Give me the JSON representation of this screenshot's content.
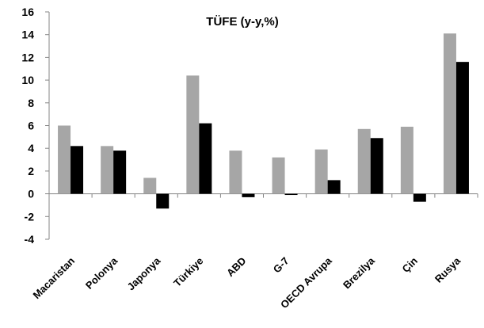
{
  "chart_data": {
    "type": "bar",
    "title": "TÜFE (y-y,%)",
    "xlabel": "",
    "ylabel": "",
    "ylim": [
      -4,
      16
    ],
    "yticks": [
      "16",
      "14",
      "12",
      "10",
      "8",
      "6",
      "4",
      "2",
      "0",
      "-2",
      "-4"
    ],
    "categories": [
      "Macaristan",
      "Polonya",
      "Japonya",
      "Türkiye",
      "ABD",
      "G-7",
      "OECD Avrupa",
      "Brezilya",
      "Çin",
      "Rusya"
    ],
    "series": [
      {
        "color": "#a6a6a6",
        "values": [
          6.0,
          4.2,
          1.4,
          10.4,
          3.8,
          3.2,
          3.9,
          5.7,
          5.9,
          14.1
        ]
      },
      {
        "color": "#000000",
        "values": [
          4.2,
          3.8,
          -1.3,
          6.2,
          -0.3,
          -0.1,
          1.2,
          4.9,
          -0.7,
          11.6
        ]
      }
    ],
    "grid": false,
    "legend": "none"
  }
}
